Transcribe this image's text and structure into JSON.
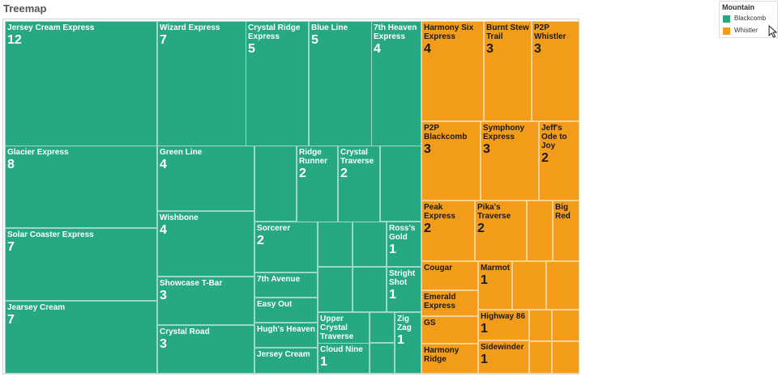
{
  "sheet": {
    "title": "Treemap"
  },
  "legend": {
    "title": "Mountain",
    "items": [
      {
        "label": "Blackcomb",
        "color": "#26a982"
      },
      {
        "label": "Whistler",
        "color": "#f39c1a"
      }
    ]
  },
  "chart_data": {
    "type": "treemap",
    "size_field": "count",
    "color_field": "Mountain",
    "colors": {
      "Blackcomb": "#26a982",
      "Whistler": "#f39c1a"
    },
    "labeled": [
      {
        "name": "Jersey Cream Express",
        "value": 12,
        "group": "Blackcomb"
      },
      {
        "name": "Wizard Express",
        "value": 7,
        "group": "Blackcomb"
      },
      {
        "name": "Crystal Ridge Express",
        "value": 5,
        "group": "Blackcomb"
      },
      {
        "name": "Blue Line",
        "value": 5,
        "group": "Blackcomb"
      },
      {
        "name": "7th Heaven Express",
        "value": 4,
        "group": "Blackcomb"
      },
      {
        "name": "Glacier Express",
        "value": 8,
        "group": "Blackcomb"
      },
      {
        "name": "Green Line",
        "value": 4,
        "group": "Blackcomb"
      },
      {
        "name": "Ridge Runner",
        "value": 2,
        "group": "Blackcomb"
      },
      {
        "name": "Crystal Traverse",
        "value": 2,
        "group": "Blackcomb"
      },
      {
        "name": "Solar Coaster Express",
        "value": 7,
        "group": "Blackcomb"
      },
      {
        "name": "Wishbone",
        "value": 4,
        "group": "Blackcomb"
      },
      {
        "name": "Sorcerer",
        "value": 2,
        "group": "Blackcomb"
      },
      {
        "name": "Ross's Gold",
        "value": 1,
        "group": "Blackcomb"
      },
      {
        "name": "Jearsey Cream",
        "value": 7,
        "group": "Blackcomb"
      },
      {
        "name": "Showcase T-Bar",
        "value": 3,
        "group": "Blackcomb"
      },
      {
        "name": "7th Avenue",
        "value": null,
        "group": "Blackcomb"
      },
      {
        "name": "Stright Shot",
        "value": 1,
        "group": "Blackcomb"
      },
      {
        "name": "Easy Out",
        "value": null,
        "group": "Blackcomb"
      },
      {
        "name": "Crystal Road",
        "value": 3,
        "group": "Blackcomb"
      },
      {
        "name": "Hugh's Heaven",
        "value": null,
        "group": "Blackcomb"
      },
      {
        "name": "Upper Crystal Traverse",
        "value": null,
        "group": "Blackcomb"
      },
      {
        "name": "Zig Zag",
        "value": 1,
        "group": "Blackcomb"
      },
      {
        "name": "Jersey Cream",
        "value": null,
        "group": "Blackcomb"
      },
      {
        "name": "Cloud Nine",
        "value": 1,
        "group": "Blackcomb"
      },
      {
        "name": "Harmony Six Express",
        "value": 4,
        "group": "Whistler"
      },
      {
        "name": "Burnt Stew Trail",
        "value": 3,
        "group": "Whistler"
      },
      {
        "name": "P2P Whistler",
        "value": 3,
        "group": "Whistler"
      },
      {
        "name": "P2P Blackcomb",
        "value": 3,
        "group": "Whistler"
      },
      {
        "name": "Symphony Express",
        "value": 3,
        "group": "Whistler"
      },
      {
        "name": "Jeff's Ode to Joy",
        "value": 2,
        "group": "Whistler"
      },
      {
        "name": "Peak Express",
        "value": 2,
        "group": "Whistler"
      },
      {
        "name": "Pika's Traverse",
        "value": 2,
        "group": "Whistler"
      },
      {
        "name": "Big Red",
        "value": null,
        "group": "Whistler"
      },
      {
        "name": "Cougar",
        "value": null,
        "group": "Whistler"
      },
      {
        "name": "Marmot",
        "value": 1,
        "group": "Whistler"
      },
      {
        "name": "Emerald Express",
        "value": null,
        "group": "Whistler"
      },
      {
        "name": "Highway 86",
        "value": 1,
        "group": "Whistler"
      },
      {
        "name": "GS",
        "value": null,
        "group": "Whistler"
      },
      {
        "name": "Harmony Ridge",
        "value": null,
        "group": "Whistler"
      },
      {
        "name": "Sidewinder",
        "value": 1,
        "group": "Whistler"
      }
    ],
    "unlabeled": [
      {
        "group": "Blackcomb"
      },
      {
        "group": "Blackcomb"
      },
      {
        "group": "Blackcomb"
      },
      {
        "group": "Blackcomb"
      },
      {
        "group": "Blackcomb"
      },
      {
        "group": "Blackcomb"
      },
      {
        "group": "Blackcomb"
      },
      {
        "group": "Blackcomb"
      },
      {
        "group": "Whistler"
      },
      {
        "group": "Whistler"
      },
      {
        "group": "Whistler"
      },
      {
        "group": "Whistler"
      },
      {
        "group": "Whistler"
      },
      {
        "group": "Whistler"
      },
      {
        "group": "Whistler"
      },
      {
        "group": "Whistler"
      }
    ]
  }
}
